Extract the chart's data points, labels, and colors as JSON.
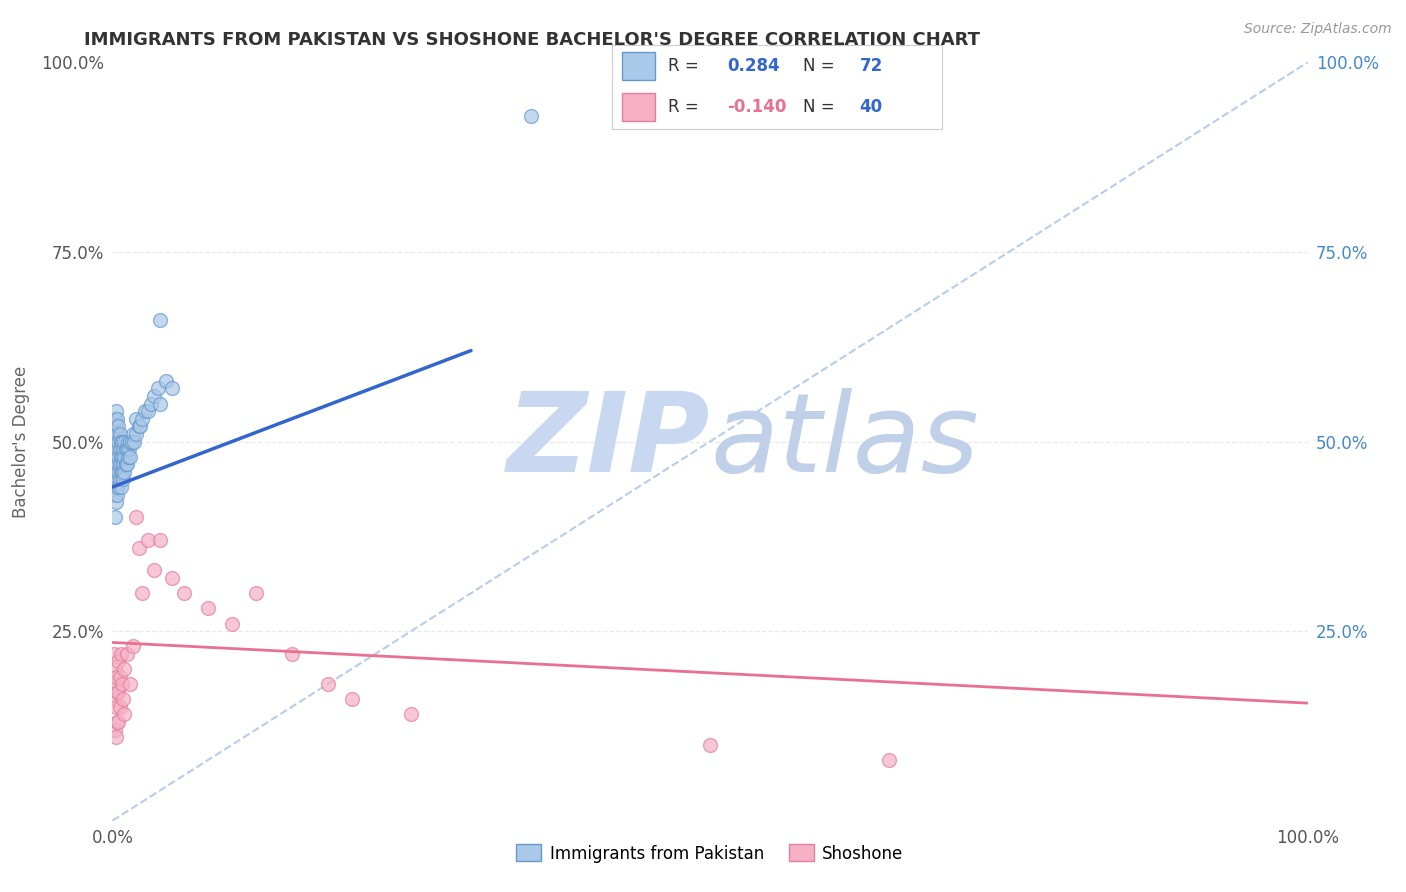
{
  "title": "IMMIGRANTS FROM PAKISTAN VS SHOSHONE BACHELOR'S DEGREE CORRELATION CHART",
  "source": "Source: ZipAtlas.com",
  "ylabel": "Bachelor's Degree",
  "xlim": [
    0,
    1.0
  ],
  "ylim": [
    0,
    1.0
  ],
  "xtick_positions": [
    0.0,
    1.0
  ],
  "xtick_labels": [
    "0.0%",
    "100.0%"
  ],
  "ytick_positions": [
    0.0,
    0.25,
    0.5,
    0.75,
    1.0
  ],
  "ytick_labels_left": [
    "",
    "25.0%",
    "50.0%",
    "75.0%",
    "100.0%"
  ],
  "ytick_labels_right": [
    "25.0%",
    "50.0%",
    "75.0%",
    "100.0%"
  ],
  "ytick_positions_right": [
    0.25,
    0.5,
    0.75,
    1.0
  ],
  "blue_scatter_x": [
    0.001,
    0.001,
    0.001,
    0.002,
    0.002,
    0.002,
    0.002,
    0.002,
    0.002,
    0.002,
    0.003,
    0.003,
    0.003,
    0.003,
    0.003,
    0.003,
    0.003,
    0.004,
    0.004,
    0.004,
    0.004,
    0.004,
    0.004,
    0.005,
    0.005,
    0.005,
    0.005,
    0.005,
    0.006,
    0.006,
    0.006,
    0.006,
    0.007,
    0.007,
    0.007,
    0.007,
    0.008,
    0.008,
    0.008,
    0.009,
    0.009,
    0.009,
    0.01,
    0.01,
    0.01,
    0.011,
    0.011,
    0.012,
    0.012,
    0.013,
    0.013,
    0.014,
    0.015,
    0.015,
    0.016,
    0.017,
    0.018,
    0.02,
    0.02,
    0.022,
    0.023,
    0.025,
    0.027,
    0.03,
    0.032,
    0.035,
    0.038,
    0.04,
    0.045,
    0.05,
    0.04,
    0.35
  ],
  "blue_scatter_y": [
    0.47,
    0.44,
    0.5,
    0.43,
    0.45,
    0.46,
    0.48,
    0.51,
    0.53,
    0.4,
    0.42,
    0.44,
    0.46,
    0.48,
    0.5,
    0.52,
    0.54,
    0.43,
    0.45,
    0.47,
    0.49,
    0.51,
    0.53,
    0.44,
    0.46,
    0.48,
    0.5,
    0.52,
    0.45,
    0.47,
    0.49,
    0.51,
    0.44,
    0.46,
    0.48,
    0.5,
    0.46,
    0.48,
    0.5,
    0.45,
    0.47,
    0.49,
    0.46,
    0.48,
    0.5,
    0.47,
    0.49,
    0.47,
    0.49,
    0.48,
    0.5,
    0.49,
    0.48,
    0.5,
    0.5,
    0.51,
    0.5,
    0.51,
    0.53,
    0.52,
    0.52,
    0.53,
    0.54,
    0.54,
    0.55,
    0.56,
    0.57,
    0.55,
    0.58,
    0.57,
    0.66,
    0.93
  ],
  "pink_scatter_x": [
    0.001,
    0.001,
    0.002,
    0.002,
    0.002,
    0.003,
    0.003,
    0.003,
    0.004,
    0.004,
    0.005,
    0.005,
    0.005,
    0.006,
    0.006,
    0.007,
    0.008,
    0.009,
    0.01,
    0.01,
    0.012,
    0.015,
    0.017,
    0.02,
    0.022,
    0.025,
    0.03,
    0.035,
    0.04,
    0.05,
    0.06,
    0.08,
    0.1,
    0.12,
    0.15,
    0.18,
    0.2,
    0.25,
    0.5,
    0.65
  ],
  "pink_scatter_y": [
    0.22,
    0.18,
    0.2,
    0.16,
    0.12,
    0.19,
    0.15,
    0.11,
    0.17,
    0.13,
    0.21,
    0.17,
    0.13,
    0.19,
    0.15,
    0.22,
    0.18,
    0.16,
    0.2,
    0.14,
    0.22,
    0.18,
    0.23,
    0.4,
    0.36,
    0.3,
    0.37,
    0.33,
    0.37,
    0.32,
    0.3,
    0.28,
    0.26,
    0.3,
    0.22,
    0.18,
    0.16,
    0.14,
    0.1,
    0.08
  ],
  "blue_line_x": [
    0.0,
    0.3
  ],
  "blue_line_y_start": 0.44,
  "blue_line_y_end": 0.62,
  "pink_line_x": [
    0.0,
    1.0
  ],
  "pink_line_y_start": 0.235,
  "pink_line_y_end": 0.155,
  "dashed_line_x": [
    0.0,
    1.0
  ],
  "dashed_line_y": [
    0.0,
    1.0
  ],
  "scatter_size": 100,
  "blue_color": "#aac8e8",
  "blue_edge": "#6699cc",
  "pink_color": "#f5b0c5",
  "pink_edge": "#e080a0",
  "blue_line_color": "#3366cc",
  "pink_line_color": "#e87090",
  "dashed_color": "#b0c8e8",
  "watermark_zip_color": "#c8d8f0",
  "watermark_atlas_color": "#c0d0e8",
  "background_color": "#ffffff",
  "grid_color": "#e8e8e8",
  "title_color": "#333333",
  "right_axis_color": "#4488cc",
  "legend_R_color": "#3366cc",
  "legend_text_color": "#333333"
}
